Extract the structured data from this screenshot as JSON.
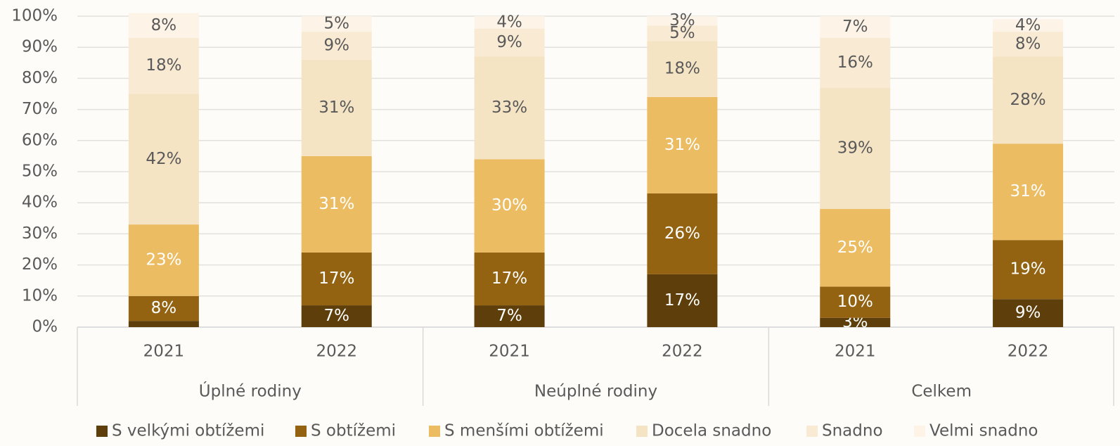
{
  "chart_data": {
    "type": "stacked_bar",
    "categories": [
      "2021",
      "2022",
      "2021",
      "2022",
      "2021",
      "2022"
    ],
    "groups": [
      "Úplné rodiny",
      "Neúplné rodiny",
      "Celkem"
    ],
    "ylim": [
      0,
      100
    ],
    "yticks": [
      {
        "value": 0,
        "label": "0%"
      },
      {
        "value": 10,
        "label": "10%"
      },
      {
        "value": 20,
        "label": "20%"
      },
      {
        "value": 30,
        "label": "30%"
      },
      {
        "value": 40,
        "label": "40%"
      },
      {
        "value": 50,
        "label": "50%"
      },
      {
        "value": 60,
        "label": "60%"
      },
      {
        "value": 70,
        "label": "70%"
      },
      {
        "value": 80,
        "label": "80%"
      },
      {
        "value": 90,
        "label": "90%"
      },
      {
        "value": 100,
        "label": "100%"
      }
    ],
    "grid": true,
    "legend": "bottom",
    "series": [
      {
        "name": "S velkými obtížemi",
        "color": "#5e3f0b",
        "label_color": "#ffffff",
        "values": [
          2,
          7,
          7,
          17,
          3,
          9
        ],
        "value_labels": [
          null,
          "7%",
          "7%",
          "17%",
          "3%",
          "9%"
        ]
      },
      {
        "name": "S obtížemi",
        "color": "#936311",
        "label_color": "#ffffff",
        "values": [
          8,
          17,
          17,
          26,
          10,
          19
        ],
        "value_labels": [
          "8%",
          "17%",
          "17%",
          "26%",
          "10%",
          "19%"
        ]
      },
      {
        "name": "S menšími obtížemi",
        "color": "#ecbc62",
        "label_color": "#ffffff",
        "values": [
          23,
          31,
          30,
          31,
          25,
          31
        ],
        "value_labels": [
          "23%",
          "31%",
          "30%",
          "31%",
          "25%",
          "31%"
        ]
      },
      {
        "name": "Docela snadno",
        "color": "#f5e4c4",
        "label_color": "#595959",
        "values": [
          42,
          31,
          33,
          18,
          39,
          28
        ],
        "value_labels": [
          "42%",
          "31%",
          "33%",
          "18%",
          "39%",
          "28%"
        ]
      },
      {
        "name": "Snadno",
        "color": "#f9ead3",
        "label_color": "#595959",
        "values": [
          18,
          9,
          9,
          5,
          16,
          8
        ],
        "value_labels": [
          "18%",
          "9%",
          "9%",
          "5%",
          "16%",
          "8%"
        ]
      },
      {
        "name": "Velmi snadno",
        "color": "#fdf3e7",
        "label_color": "#595959",
        "values": [
          8,
          5,
          4,
          3,
          7,
          4
        ],
        "value_labels": [
          "8%",
          "5%",
          "4%",
          "3%",
          "7%",
          "4%"
        ]
      }
    ]
  }
}
